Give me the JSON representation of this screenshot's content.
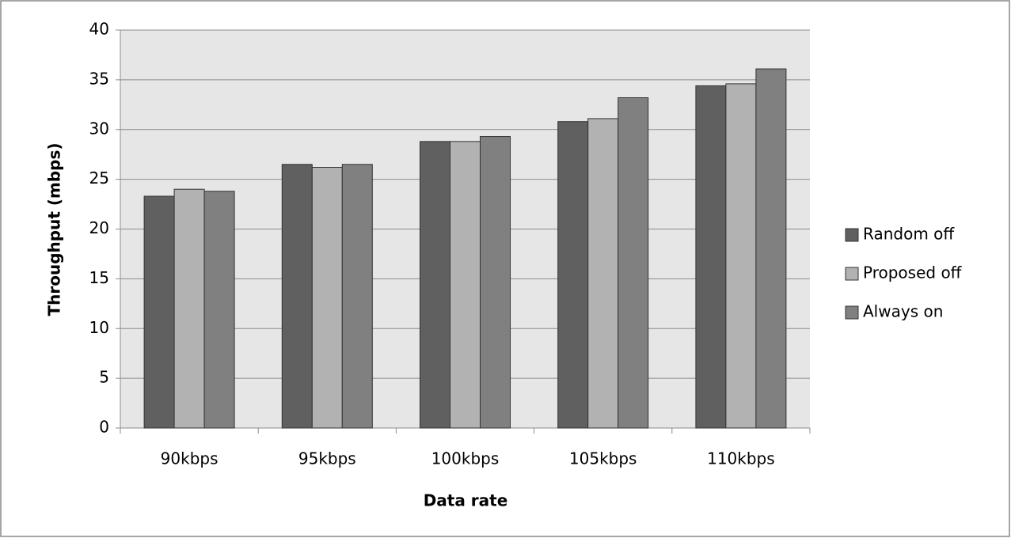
{
  "chart_data": {
    "type": "bar",
    "x_label": "Data rate",
    "y_label": "Throughput (mbps)",
    "categories": [
      "90kbps",
      "95kbps",
      "100kbps",
      "105kbps",
      "110kbps"
    ],
    "series": [
      {
        "name": "Random off",
        "color": "#606060",
        "values": [
          23.3,
          26.5,
          28.8,
          30.8,
          34.4
        ]
      },
      {
        "name": "Proposed off",
        "color": "#b2b2b2",
        "values": [
          24.0,
          26.2,
          28.8,
          31.1,
          34.6
        ]
      },
      {
        "name": "Always on",
        "color": "#808080",
        "values": [
          23.8,
          26.5,
          29.3,
          33.2,
          36.1
        ]
      }
    ],
    "ylim": [
      0,
      40
    ],
    "yticks": [
      0,
      5,
      10,
      15,
      20,
      25,
      30,
      35,
      40
    ],
    "grid": true,
    "legend": "right"
  }
}
